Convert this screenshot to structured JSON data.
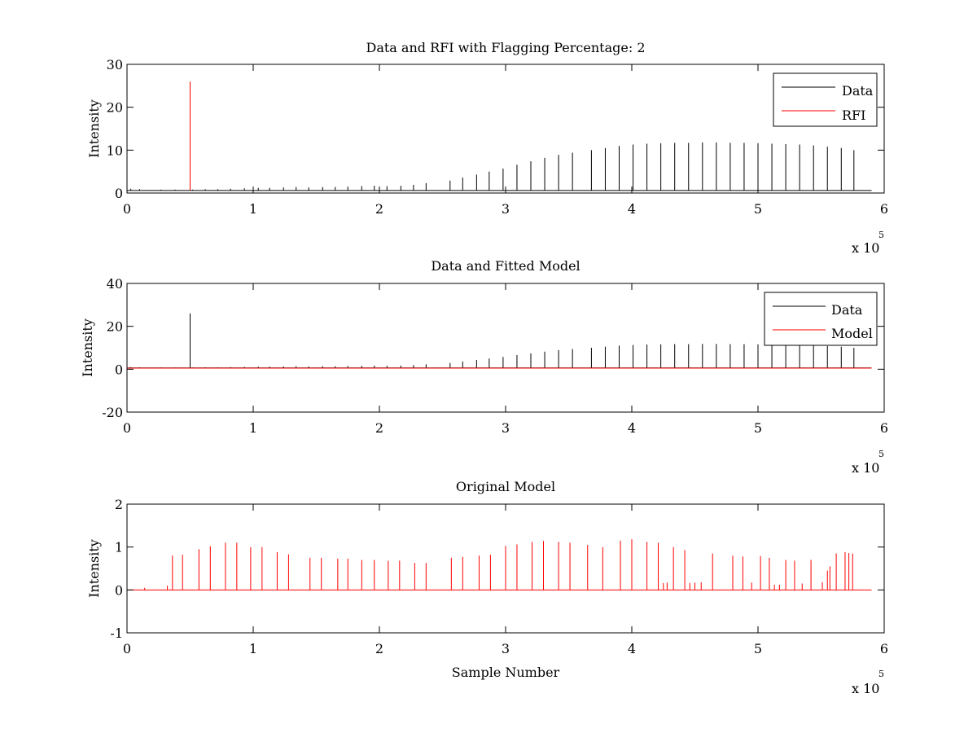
{
  "chart_data": [
    {
      "type": "line",
      "title": "Data and RFI with Flagging Percentage: 2",
      "xlabel": "",
      "ylabel": "Intensity",
      "xlim": [
        0,
        6
      ],
      "ylim": [
        0,
        30
      ],
      "xticks": [
        "0",
        "1",
        "2",
        "3",
        "4",
        "5",
        "6"
      ],
      "yticks": [
        "0",
        "10",
        "20",
        "30"
      ],
      "x_exponent": {
        "base": "x 10",
        "power": "5"
      },
      "legend": {
        "position": "top-right",
        "entries": [
          "Data",
          "RFI"
        ]
      },
      "grid": false,
      "baseline": 0.6,
      "series": [
        {
          "name": "Data",
          "color": "#000000",
          "spikes": {
            "x": [
              0.03,
              0.1,
              0.27,
              0.38,
              0.52,
              0.62,
              0.72,
              0.82,
              0.93,
              1.04,
              1.13,
              1.24,
              1.34,
              1.44,
              1.55,
              1.65,
              1.75,
              1.86,
              1.96,
              2.06,
              2.17,
              2.27,
              2.37,
              2.56,
              2.66,
              2.77,
              2.87,
              2.98,
              3.09,
              3.2,
              3.31,
              3.42,
              3.53,
              3.68,
              3.79,
              3.9,
              4.01,
              4.12,
              4.23,
              4.34,
              4.45,
              4.56,
              4.67,
              4.78,
              4.89,
              5.0,
              5.11,
              5.22,
              5.33,
              5.44,
              5.55,
              5.66,
              5.76
            ],
            "y": [
              1.0,
              0.9,
              0.8,
              0.8,
              0.8,
              0.9,
              0.9,
              1.0,
              1.1,
              1.2,
              1.2,
              1.3,
              1.4,
              1.3,
              1.4,
              1.4,
              1.5,
              1.6,
              1.7,
              1.6,
              1.7,
              1.9,
              2.3,
              2.9,
              3.6,
              4.3,
              5.0,
              5.7,
              6.6,
              7.4,
              8.2,
              8.9,
              9.4,
              10.0,
              10.5,
              11.0,
              11.3,
              11.5,
              11.6,
              11.7,
              11.7,
              11.8,
              11.8,
              11.7,
              11.7,
              11.6,
              11.5,
              11.4,
              11.3,
              11.1,
              10.8,
              10.5,
              10.0
            ]
          }
        },
        {
          "name": "RFI",
          "color": "#ff0000",
          "spikes": {
            "x": [
              0.5
            ],
            "y": [
              26.0
            ]
          }
        }
      ]
    },
    {
      "type": "line",
      "title": "Data and Fitted Model",
      "xlabel": "",
      "ylabel": "Intensity",
      "xlim": [
        0,
        6
      ],
      "ylim": [
        -20,
        40
      ],
      "xticks": [
        "0",
        "1",
        "2",
        "3",
        "4",
        "5",
        "6"
      ],
      "yticks": [
        "-20",
        "0",
        "20",
        "40"
      ],
      "x_exponent": {
        "base": "x 10",
        "power": "5"
      },
      "legend": {
        "position": "top-right",
        "entries": [
          "Data",
          "Model"
        ]
      },
      "grid": false,
      "baseline": 0.6,
      "series": [
        {
          "name": "Data",
          "color": "#000000",
          "spikes": {
            "x": [
              0.03,
              0.1,
              0.27,
              0.38,
              0.5,
              0.52,
              0.62,
              0.72,
              0.82,
              0.93,
              1.04,
              1.13,
              1.24,
              1.34,
              1.44,
              1.55,
              1.65,
              1.75,
              1.86,
              1.96,
              2.06,
              2.17,
              2.27,
              2.37,
              2.56,
              2.66,
              2.77,
              2.87,
              2.98,
              3.09,
              3.2,
              3.31,
              3.42,
              3.53,
              3.68,
              3.79,
              3.9,
              4.01,
              4.12,
              4.23,
              4.34,
              4.45,
              4.56,
              4.67,
              4.78,
              4.89,
              5.0,
              5.11,
              5.22,
              5.33,
              5.44,
              5.55,
              5.66,
              5.76
            ],
            "y": [
              1.0,
              0.9,
              0.8,
              0.8,
              26.0,
              0.8,
              0.9,
              0.9,
              1.0,
              1.1,
              1.2,
              1.2,
              1.3,
              1.4,
              1.3,
              1.4,
              1.4,
              1.5,
              1.6,
              1.7,
              1.6,
              1.7,
              1.9,
              2.3,
              2.9,
              3.6,
              4.3,
              5.0,
              5.7,
              6.6,
              7.4,
              8.2,
              8.9,
              9.4,
              10.0,
              10.5,
              11.0,
              11.3,
              11.5,
              11.6,
              11.7,
              11.7,
              11.8,
              11.8,
              11.7,
              11.7,
              11.6,
              11.5,
              11.4,
              11.3,
              11.1,
              10.8,
              10.5,
              10.0
            ]
          }
        },
        {
          "name": "Model",
          "color": "#ff0000",
          "line": {
            "x": [
              0.0,
              5.9
            ],
            "y": [
              0.5,
              0.5
            ]
          }
        }
      ]
    },
    {
      "type": "line",
      "title": "Original Model",
      "xlabel": "Sample Number",
      "ylabel": "Intensity",
      "xlim": [
        0,
        6
      ],
      "ylim": [
        -1,
        2
      ],
      "xticks": [
        "0",
        "1",
        "2",
        "3",
        "4",
        "5",
        "6"
      ],
      "yticks": [
        "-1",
        "0",
        "1",
        "2"
      ],
      "x_exponent": {
        "base": "x 10",
        "power": "5"
      },
      "grid": false,
      "baseline": 0.0,
      "series": [
        {
          "color": "#ff0000",
          "spikes": {
            "x": [
              0.14,
              0.32,
              0.36,
              0.44,
              0.57,
              0.66,
              0.78,
              0.87,
              0.98,
              1.07,
              1.19,
              1.28,
              1.45,
              1.54,
              1.67,
              1.75,
              1.86,
              1.96,
              2.07,
              2.16,
              2.28,
              2.37,
              2.57,
              2.66,
              2.79,
              2.88,
              3.0,
              3.09,
              3.21,
              3.3,
              3.42,
              3.51,
              3.65,
              3.77,
              3.91,
              4.0,
              4.12,
              4.21,
              4.25,
              4.28,
              4.33,
              4.42,
              4.46,
              4.5,
              4.55,
              4.64,
              4.8,
              4.88,
              4.95,
              5.02,
              5.09,
              5.13,
              5.17,
              5.22,
              5.29,
              5.35,
              5.42,
              5.51,
              5.55,
              5.57,
              5.62,
              5.69,
              5.72,
              5.75
            ],
            "y": [
              0.05,
              0.1,
              0.8,
              0.82,
              0.95,
              1.02,
              1.1,
              1.1,
              1.0,
              1.0,
              0.88,
              0.83,
              0.75,
              0.75,
              0.73,
              0.73,
              0.7,
              0.7,
              0.68,
              0.68,
              0.63,
              0.63,
              0.75,
              0.77,
              0.8,
              0.82,
              1.03,
              1.06,
              1.12,
              1.14,
              1.12,
              1.1,
              1.05,
              1.0,
              1.15,
              1.18,
              1.12,
              1.1,
              0.16,
              0.17,
              1.0,
              0.93,
              0.16,
              0.17,
              0.18,
              0.85,
              0.8,
              0.78,
              0.17,
              0.79,
              0.75,
              0.12,
              0.12,
              0.7,
              0.68,
              0.15,
              0.7,
              0.18,
              0.45,
              0.55,
              0.85,
              0.88,
              0.86,
              0.85
            ]
          }
        }
      ]
    }
  ]
}
